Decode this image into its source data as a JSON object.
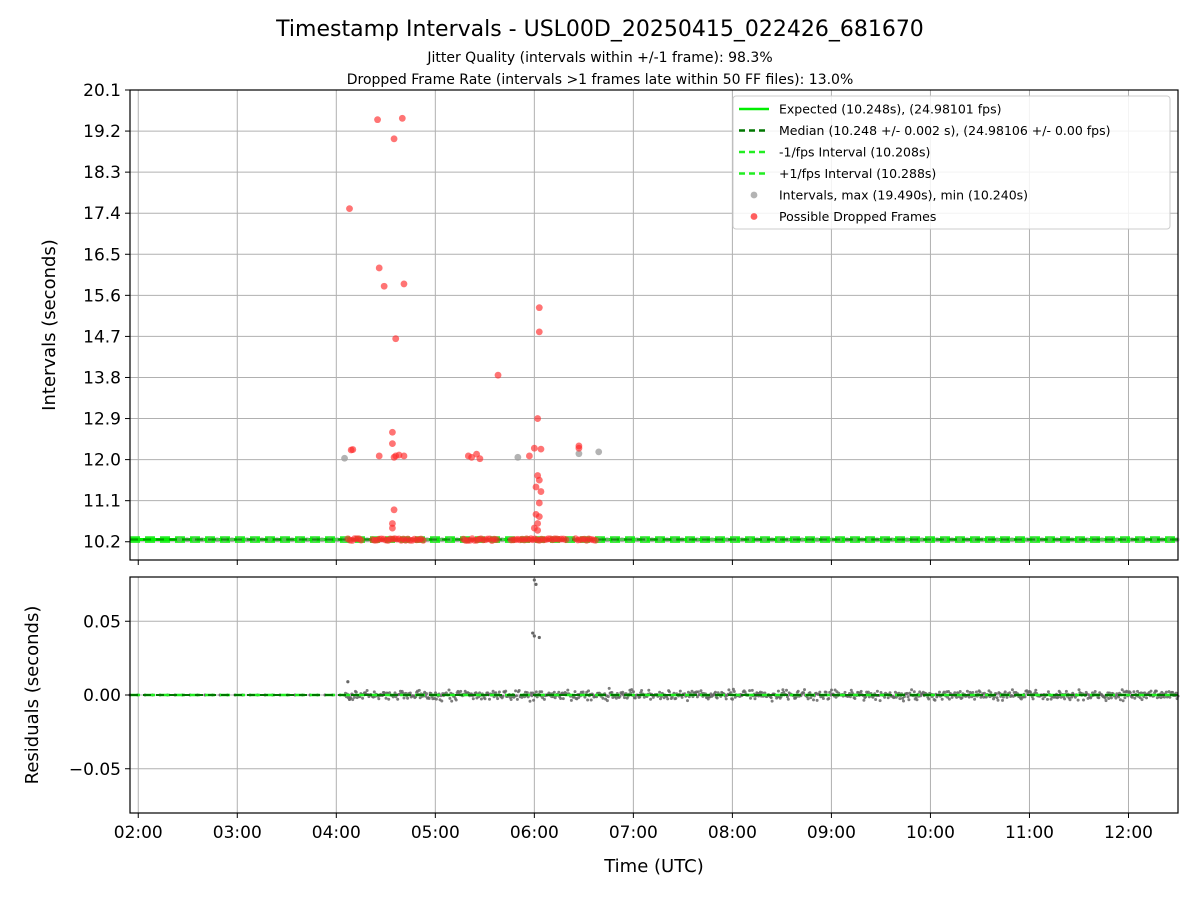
{
  "title": "Timestamp Intervals - USL00D_20250415_022426_681670",
  "subtitle1": "Jitter Quality (intervals within +/-1 frame): 98.3%",
  "subtitle2": "Dropped Frame Rate (intervals >1 frames late within 50 FF files): 13.0%",
  "colors": {
    "expected": "#00ee00",
    "median": "#007700",
    "interval_bound": "#22ee22",
    "intervals": "#999999",
    "dropped": "#ff2a2a",
    "residuals": "#666666",
    "grid": "#b0b0b0"
  },
  "chart_data": [
    {
      "type": "scatter",
      "ylabel": "Intervals (seconds)",
      "xlim": [
        "01:55",
        "12:30"
      ],
      "ylim": [
        9.8,
        20.1
      ],
      "yticks": [
        "20.1",
        "19.2",
        "18.3",
        "17.4",
        "16.5",
        "15.6",
        "14.7",
        "13.8",
        "12.9",
        "12.0",
        "11.1",
        "10.2"
      ],
      "grid": true,
      "legend_position": "top-right",
      "legend": [
        "Expected (10.248s), (24.98101 fps)",
        "Median (10.248 +/- 0.002 s), (24.98106 +/- 0.00 fps)",
        "-1/fps Interval (10.208s)",
        "+1/fps Interval (10.288s)",
        "Intervals, max (19.490s), min (10.240s)",
        "Possible Dropped Frames"
      ],
      "lines": {
        "expected": 10.248,
        "median": 10.248,
        "minus_1fps": 10.208,
        "plus_1fps": 10.288
      },
      "regular_intervals_range": {
        "x_start": "02:25",
        "x_end": "12:30",
        "y": 10.248
      },
      "intervals_outliers": [
        {
          "x": "04:05",
          "y": 12.03
        },
        {
          "x": "05:50",
          "y": 12.05
        },
        {
          "x": "06:27",
          "y": 12.13
        },
        {
          "x": "06:39",
          "y": 12.17
        }
      ],
      "dropped_frames": [
        {
          "x": "04:08",
          "y": 17.5
        },
        {
          "x": "04:09",
          "y": 12.21
        },
        {
          "x": "04:10",
          "y": 12.22
        },
        {
          "x": "04:25",
          "y": 19.45
        },
        {
          "x": "04:26",
          "y": 16.2
        },
        {
          "x": "04:26",
          "y": 12.08
        },
        {
          "x": "04:29",
          "y": 15.8
        },
        {
          "x": "04:35",
          "y": 19.03
        },
        {
          "x": "04:34",
          "y": 12.6
        },
        {
          "x": "04:34",
          "y": 12.35
        },
        {
          "x": "04:35",
          "y": 12.05
        },
        {
          "x": "04:36",
          "y": 12.08
        },
        {
          "x": "04:36",
          "y": 14.65
        },
        {
          "x": "04:38",
          "y": 12.1
        },
        {
          "x": "04:40",
          "y": 19.48
        },
        {
          "x": "04:41",
          "y": 12.08
        },
        {
          "x": "04:41",
          "y": 15.85
        },
        {
          "x": "04:35",
          "y": 10.9
        },
        {
          "x": "04:34",
          "y": 10.6
        },
        {
          "x": "04:34",
          "y": 10.5
        },
        {
          "x": "05:20",
          "y": 12.08
        },
        {
          "x": "05:22",
          "y": 12.05
        },
        {
          "x": "05:25",
          "y": 12.12
        },
        {
          "x": "05:27",
          "y": 12.02
        },
        {
          "x": "05:38",
          "y": 13.85
        },
        {
          "x": "05:57",
          "y": 12.08
        },
        {
          "x": "06:00",
          "y": 12.25
        },
        {
          "x": "06:02",
          "y": 12.9
        },
        {
          "x": "06:03",
          "y": 15.33
        },
        {
          "x": "06:03",
          "y": 14.8
        },
        {
          "x": "06:04",
          "y": 12.23
        },
        {
          "x": "06:02",
          "y": 11.65
        },
        {
          "x": "06:03",
          "y": 11.55
        },
        {
          "x": "06:01",
          "y": 11.4
        },
        {
          "x": "06:04",
          "y": 11.3
        },
        {
          "x": "06:03",
          "y": 11.05
        },
        {
          "x": "06:01",
          "y": 10.8
        },
        {
          "x": "06:03",
          "y": 10.75
        },
        {
          "x": "06:02",
          "y": 10.6
        },
        {
          "x": "06:00",
          "y": 10.5
        },
        {
          "x": "06:02",
          "y": 10.45
        },
        {
          "x": "06:27",
          "y": 12.3
        },
        {
          "x": "06:27",
          "y": 12.25
        }
      ],
      "dropped_baseline_segments": [
        [
          "04:07",
          "04:16"
        ],
        [
          "04:22",
          "04:53"
        ],
        [
          "05:17",
          "05:37"
        ],
        [
          "05:46",
          "05:58"
        ],
        [
          "05:59",
          "06:20"
        ],
        [
          "06:25",
          "06:38"
        ]
      ]
    },
    {
      "type": "scatter",
      "xlabel": "Time (UTC)",
      "ylabel": "Residuals (seconds)",
      "xlim": [
        "01:55",
        "12:30"
      ],
      "ylim": [
        -0.08,
        0.08
      ],
      "yticks": [
        "0.05",
        "0.00",
        "−0.05"
      ],
      "xticks": [
        "02:00",
        "03:00",
        "04:00",
        "05:00",
        "06:00",
        "07:00",
        "08:00",
        "09:00",
        "10:00",
        "11:00",
        "12:00"
      ],
      "grid": true,
      "median_line": 0.0,
      "residual_noise_range": {
        "x_start": "04:05",
        "x_end": "12:30",
        "amplitude": 0.005
      },
      "residual_outliers": [
        {
          "x": "06:00",
          "y": 0.078
        },
        {
          "x": "06:01",
          "y": 0.075
        },
        {
          "x": "05:59",
          "y": 0.042
        },
        {
          "x": "06:00",
          "y": 0.04
        },
        {
          "x": "06:03",
          "y": 0.039
        },
        {
          "x": "04:07",
          "y": 0.009
        },
        {
          "x": "04:08",
          "y": -0.003
        }
      ]
    }
  ]
}
